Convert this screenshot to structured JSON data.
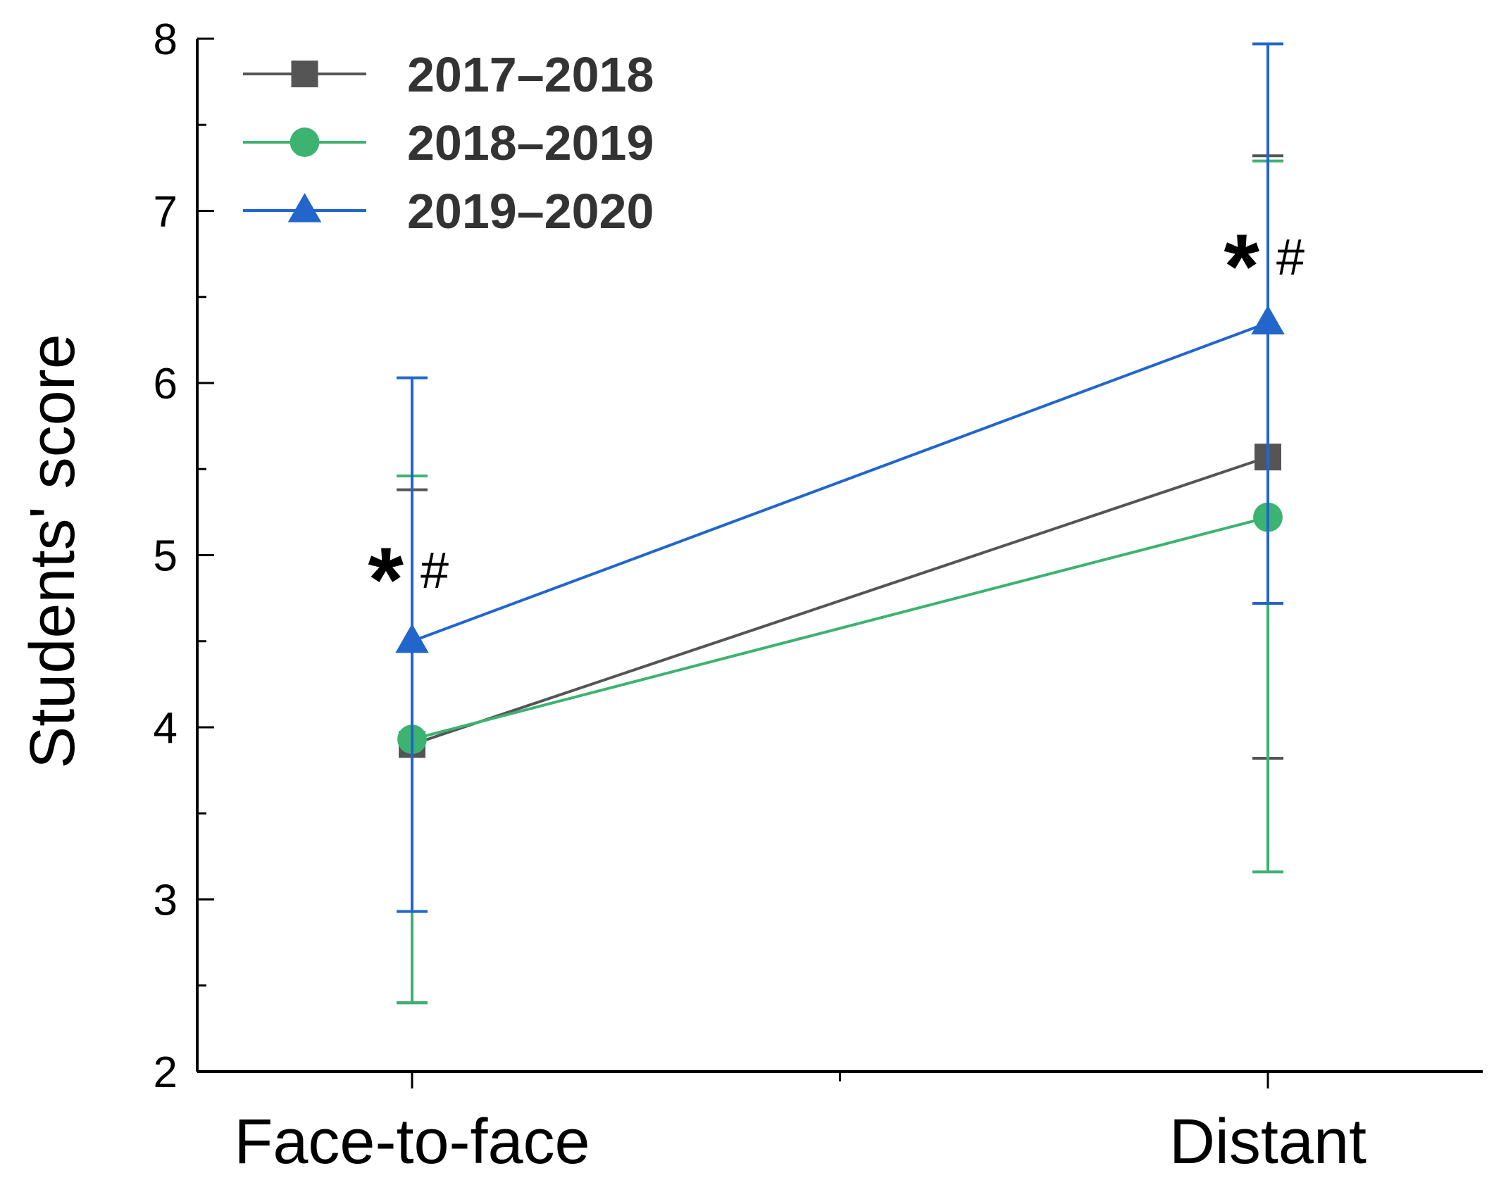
{
  "chart_data": {
    "type": "line",
    "title": "",
    "xlabel": "",
    "ylabel": "Students' score",
    "categories": [
      "Face-to-face",
      "Distant"
    ],
    "ylim": [
      2,
      8
    ],
    "yticks": [
      2,
      3,
      4,
      5,
      6,
      7,
      8
    ],
    "grid": false,
    "legend_position": "top-left",
    "series": [
      {
        "name": "2017–2018",
        "color": "#555555",
        "marker": "square",
        "values": [
          3.9,
          5.57
        ],
        "error_low": [
          2.4,
          3.82
        ],
        "error_high": [
          5.38,
          7.32
        ]
      },
      {
        "name": "2018–2019",
        "color": "#3cb371",
        "marker": "circle",
        "values": [
          3.93,
          5.22
        ],
        "error_low": [
          2.4,
          3.16
        ],
        "error_high": [
          5.46,
          7.29
        ]
      },
      {
        "name": "2019–2020",
        "color": "#2266cc",
        "marker": "triangle",
        "values": [
          4.5,
          6.35
        ],
        "error_low": [
          2.93,
          4.72
        ],
        "error_high": [
          6.03,
          7.97
        ]
      }
    ],
    "annotations": [
      {
        "category": "Face-to-face",
        "y": 4.9,
        "star": "*",
        "hash": "#"
      },
      {
        "category": "Distant",
        "y": 6.72,
        "star": "*",
        "hash": "#"
      }
    ]
  }
}
